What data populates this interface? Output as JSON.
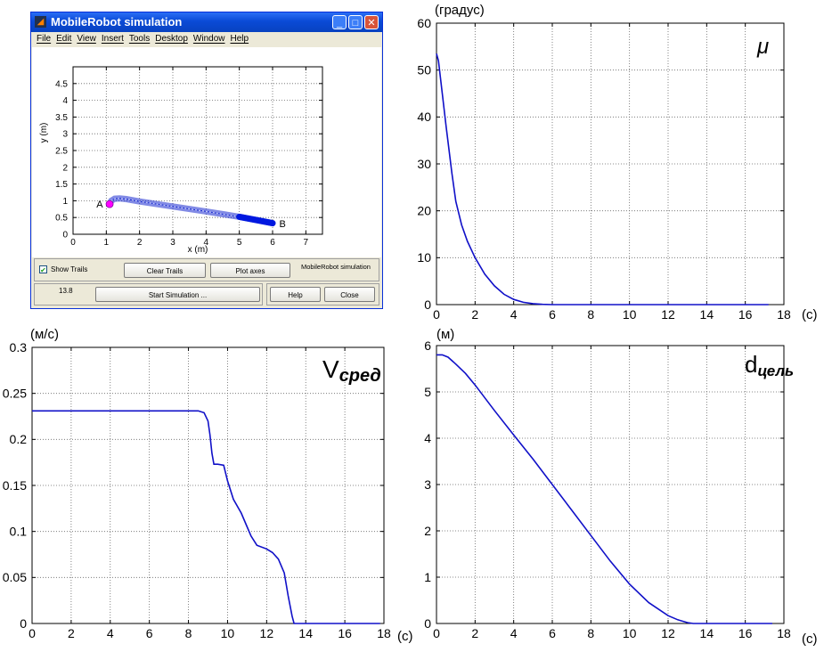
{
  "window": {
    "title": "MobileRobot simulation",
    "menu": [
      "File",
      "Edit",
      "View",
      "Insert",
      "Tools",
      "Desktop",
      "Window",
      "Help"
    ],
    "show_trails_label": "Show Trails",
    "show_trails_checked": true,
    "clear_trails_label": "Clear Trails",
    "plot_axes_label": "Plot axes",
    "sim_label": "MobileRobot simulation",
    "time_value": "13.8",
    "start_label": "Start Simulation ...",
    "help_label": "Help",
    "close_label": "Close"
  },
  "chart_data": [
    {
      "id": "trajectory",
      "type": "line",
      "xlabel": "x (m)",
      "ylabel": "y (m)",
      "xlim": [
        0,
        7.5
      ],
      "ylim": [
        0,
        5
      ],
      "xticks": [
        0,
        1,
        2,
        3,
        4,
        5,
        6,
        7
      ],
      "yticks": [
        0,
        0.5,
        1,
        1.5,
        2,
        2.5,
        3,
        3.5,
        4,
        4.5
      ],
      "grid": true,
      "series": [
        {
          "x": [
            1.1,
            1.15,
            1.25,
            1.4,
            1.6,
            2.0,
            3.0,
            4.0,
            5.0,
            5.6,
            6.0
          ],
          "y": [
            0.9,
            1.0,
            1.06,
            1.07,
            1.05,
            0.98,
            0.83,
            0.68,
            0.52,
            0.41,
            0.33
          ]
        }
      ],
      "annotations": [
        {
          "text": "A",
          "x": 0.8,
          "y": 0.9
        },
        {
          "text": "B",
          "x": 6.3,
          "y": 0.32
        }
      ],
      "start_marker_color": "#ff00ff",
      "line_color": "#1a2ad0"
    },
    {
      "id": "mu",
      "type": "line",
      "title": "μ",
      "ylabel": "(градус)",
      "xlabel": "(c)",
      "xlim": [
        0,
        18
      ],
      "ylim": [
        0,
        60
      ],
      "xticks": [
        0,
        2,
        4,
        6,
        8,
        10,
        12,
        14,
        16,
        18
      ],
      "yticks": [
        0,
        10,
        20,
        30,
        40,
        50,
        60
      ],
      "grid": true,
      "line_color": "#1010c8",
      "series": [
        {
          "x": [
            0,
            0.1,
            0.3,
            0.5,
            0.8,
            1.0,
            1.3,
            1.6,
            2.0,
            2.5,
            3.0,
            3.5,
            4.0,
            4.5,
            5.0,
            5.5,
            6.0,
            8,
            10,
            12,
            14,
            16,
            17.2
          ],
          "y": [
            53.5,
            52,
            45,
            38,
            28,
            22,
            17,
            13.5,
            10,
            6.5,
            4,
            2.2,
            1.1,
            0.5,
            0.2,
            0.05,
            0,
            0,
            0,
            0,
            0,
            0,
            0
          ]
        }
      ]
    },
    {
      "id": "vsred",
      "type": "line",
      "title": "V",
      "title_sub": "сред",
      "ylabel": "(м/с)",
      "xlabel": "(c)",
      "xlim": [
        0,
        18
      ],
      "ylim": [
        0,
        0.3
      ],
      "xticks": [
        0,
        2,
        4,
        6,
        8,
        10,
        12,
        14,
        16,
        18
      ],
      "yticks": [
        0,
        0.05,
        0.1,
        0.15,
        0.2,
        0.25,
        0.3
      ],
      "ytick_labels": [
        "0",
        "0.05",
        "0.1",
        "0.15",
        "0.2",
        "0.25",
        "0.3"
      ],
      "grid": true,
      "line_color": "#1010c8",
      "series": [
        {
          "x": [
            0,
            8.5,
            8.8,
            9.0,
            9.1,
            9.2,
            9.3,
            9.5,
            9.8,
            10.0,
            10.3,
            10.7,
            11.0,
            11.2,
            11.5,
            12.0,
            12.3,
            12.6,
            12.9,
            13.1,
            13.3,
            13.4,
            14,
            16,
            17.8
          ],
          "y": [
            0.231,
            0.231,
            0.229,
            0.22,
            0.205,
            0.185,
            0.173,
            0.173,
            0.172,
            0.155,
            0.135,
            0.12,
            0.105,
            0.095,
            0.085,
            0.081,
            0.077,
            0.07,
            0.055,
            0.03,
            0.008,
            0,
            0,
            0,
            0
          ]
        }
      ]
    },
    {
      "id": "dtsel",
      "type": "line",
      "title": "d",
      "title_sub": "цель",
      "ylabel": "(м)",
      "xlabel": "(c)",
      "xlim": [
        0,
        18
      ],
      "ylim": [
        0,
        6
      ],
      "xticks": [
        0,
        2,
        4,
        6,
        8,
        10,
        12,
        14,
        16,
        18
      ],
      "yticks": [
        0,
        1,
        2,
        3,
        4,
        5,
        6
      ],
      "grid": true,
      "line_color": "#1010c8",
      "series": [
        {
          "x": [
            0,
            0.3,
            0.6,
            1.0,
            1.5,
            2,
            3,
            4,
            5,
            6,
            7,
            8,
            9,
            10,
            11,
            12,
            12.5,
            13,
            13.3,
            14,
            16,
            17.4
          ],
          "y": [
            5.8,
            5.8,
            5.75,
            5.6,
            5.4,
            5.15,
            4.6,
            4.07,
            3.55,
            3.0,
            2.45,
            1.9,
            1.35,
            0.85,
            0.45,
            0.17,
            0.08,
            0.02,
            0,
            0,
            0,
            0
          ]
        }
      ]
    }
  ]
}
